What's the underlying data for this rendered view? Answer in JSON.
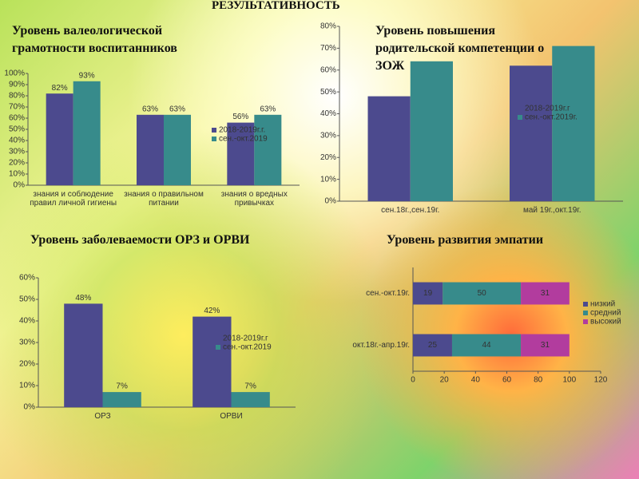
{
  "title": "РЕЗУЛЬТАТИВНОСТЬ",
  "chart_data": [
    {
      "type": "bar",
      "title": "Уровень валеологической грамотности воспитанников",
      "categories": [
        "знания и соблюдение правил личной гигиены",
        "знания о правильном питании",
        "знания о вредных привычках"
      ],
      "series": [
        {
          "name": "2018-2019г.г.",
          "color": "#4c4a8e",
          "values": [
            82,
            63,
            56
          ],
          "value_labels": [
            "82%",
            "63%",
            "56%"
          ]
        },
        {
          "name": "сен.-окт.2019",
          "color": "#378b8b",
          "values": [
            93,
            63,
            63
          ],
          "value_labels": [
            "93%",
            "63%",
            "63%"
          ]
        }
      ],
      "ylim": [
        0,
        100
      ],
      "yticks": [
        {
          "value": 0,
          "label": "0%"
        },
        {
          "value": 10,
          "label": "10%"
        },
        {
          "value": 20,
          "label": "20%"
        },
        {
          "value": 30,
          "label": "30%"
        },
        {
          "value": 40,
          "label": "40%"
        },
        {
          "value": 50,
          "label": "50%"
        },
        {
          "value": 60,
          "label": "60%"
        },
        {
          "value": 70,
          "label": "70%"
        },
        {
          "value": 80,
          "label": "80%"
        },
        {
          "value": 90,
          "label": "90%"
        },
        {
          "value": 100,
          "label": "100%"
        }
      ]
    },
    {
      "type": "bar",
      "title": "Уровень повышения родительской компетенции о ЗОЖ",
      "categories": [
        "сен.18г.,сен.19г.",
        "май 19г.,окт.19г."
      ],
      "series": [
        {
          "name": "2018-2019г.г",
          "color": "#4c4a8e",
          "values": [
            48,
            62
          ]
        },
        {
          "name": "сен.-окт.2019г.",
          "color": "#378b8b",
          "values": [
            64,
            71
          ]
        }
      ],
      "ylim": [
        0,
        80
      ],
      "yticks": [
        {
          "value": 0,
          "label": "0%"
        },
        {
          "value": 10,
          "label": "10%"
        },
        {
          "value": 20,
          "label": "20%"
        },
        {
          "value": 30,
          "label": "30%"
        },
        {
          "value": 40,
          "label": "40%"
        },
        {
          "value": 50,
          "label": "50%"
        },
        {
          "value": 60,
          "label": "60%"
        },
        {
          "value": 70,
          "label": "70%"
        },
        {
          "value": 80,
          "label": "80%"
        }
      ]
    },
    {
      "type": "bar",
      "title": "Уровень заболеваемости ОРЗ и ОРВИ",
      "categories": [
        "ОРЗ",
        "ОРВИ"
      ],
      "series": [
        {
          "name": "2018-2019г.г",
          "color": "#4c4a8e",
          "values": [
            48,
            42
          ],
          "value_labels": [
            "48%",
            "42%"
          ]
        },
        {
          "name": "сен.-окт.2019",
          "color": "#378b8b",
          "values": [
            7,
            7
          ],
          "value_labels": [
            "7%",
            "7%"
          ]
        }
      ],
      "ylim": [
        0,
        60
      ],
      "yticks": [
        {
          "value": 0,
          "label": "0%"
        },
        {
          "value": 10,
          "label": "10%"
        },
        {
          "value": 20,
          "label": "20%"
        },
        {
          "value": 30,
          "label": "30%"
        },
        {
          "value": 40,
          "label": "40%"
        },
        {
          "value": 50,
          "label": "50%"
        },
        {
          "value": 60,
          "label": "60%"
        }
      ]
    },
    {
      "type": "stacked-hbar",
      "title": "Уровень развития эмпатии",
      "categories": [
        "сен.-окт.19г.",
        "окт.18г.-апр.19г."
      ],
      "series": [
        {
          "name": "низкий",
          "color": "#4c4a8e",
          "values": [
            19,
            25
          ]
        },
        {
          "name": "средний",
          "color": "#378b8b",
          "values": [
            50,
            44
          ]
        },
        {
          "name": "высокий",
          "color": "#b23c9e",
          "values": [
            31,
            31
          ]
        }
      ],
      "xlim": [
        0,
        120
      ],
      "xticks": [
        0,
        20,
        40,
        60,
        80,
        100,
        120
      ]
    }
  ]
}
